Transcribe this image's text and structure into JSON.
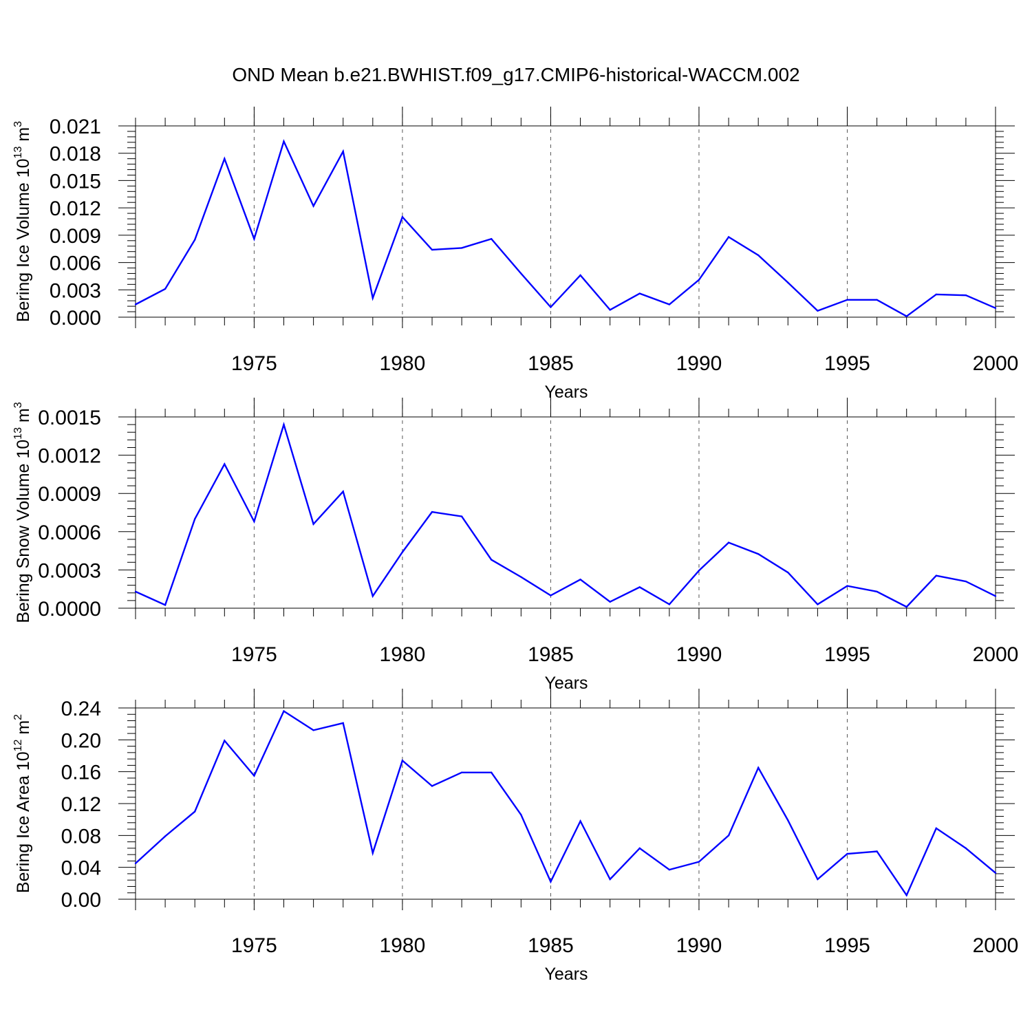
{
  "title": "OND Mean b.e21.BWHIST.f09_g17.CMIP6-historical-WACCM.002",
  "colors": {
    "line": "#0000ff",
    "axis": "#000000",
    "grid": "#555555",
    "background": "#ffffff"
  },
  "chart_data": [
    {
      "type": "line",
      "xlabel": "Years",
      "ylabel": {
        "text": "Bering Ice Volume 10",
        "sup": "13",
        "unit": " m",
        "unit_sup": "3"
      },
      "xlim": [
        1971,
        2000
      ],
      "ylim": [
        0,
        0.021
      ],
      "xticks": [
        1975,
        1980,
        1985,
        1990,
        1995,
        2000
      ],
      "xtick_labels": [
        "1975",
        "1980",
        "1985",
        "1990",
        "1995",
        "2000"
      ],
      "yticks": [
        0,
        0.003,
        0.006,
        0.009,
        0.012,
        0.015,
        0.018,
        0.021
      ],
      "ytick_labels": [
        "0.000",
        "0.003",
        "0.006",
        "0.009",
        "0.012",
        "0.015",
        "0.018",
        "0.021"
      ],
      "grid": "dashed vertical at major x ticks",
      "x": [
        1971,
        1972,
        1973,
        1974,
        1975,
        1976,
        1977,
        1978,
        1979,
        1980,
        1981,
        1982,
        1983,
        1984,
        1985,
        1986,
        1987,
        1988,
        1989,
        1990,
        1991,
        1992,
        1993,
        1994,
        1995,
        1996,
        1997,
        1998,
        1999,
        2000
      ],
      "series": [
        {
          "values": [
            0.0014,
            0.0031,
            0.0085,
            0.0174,
            0.0086,
            0.0193,
            0.0122,
            0.0182,
            0.0021,
            0.011,
            0.0074,
            0.0076,
            0.0086,
            0.0048,
            0.0011,
            0.0046,
            0.0008,
            0.0026,
            0.0014,
            0.0041,
            0.0088,
            0.0068,
            0.0038,
            0.0007,
            0.0019,
            0.0019,
            0.0001,
            0.0025,
            0.0024,
            0.001
          ]
        }
      ]
    },
    {
      "type": "line",
      "xlabel": "Years",
      "ylabel": {
        "text": "Bering Snow Volume 10",
        "sup": "13",
        "unit": " m",
        "unit_sup": "3"
      },
      "xlim": [
        1971,
        2000
      ],
      "ylim": [
        0,
        0.0015
      ],
      "xticks": [
        1975,
        1980,
        1985,
        1990,
        1995,
        2000
      ],
      "xtick_labels": [
        "1975",
        "1980",
        "1985",
        "1990",
        "1995",
        "2000"
      ],
      "yticks": [
        0,
        0.0003,
        0.0006,
        0.0009,
        0.0012,
        0.0015
      ],
      "ytick_labels": [
        "0.0000",
        "0.0003",
        "0.0006",
        "0.0009",
        "0.0012",
        "0.0015"
      ],
      "grid": "dashed vertical at major x ticks",
      "x": [
        1971,
        1972,
        1973,
        1974,
        1975,
        1976,
        1977,
        1978,
        1979,
        1980,
        1981,
        1982,
        1983,
        1984,
        1985,
        1986,
        1987,
        1988,
        1989,
        1990,
        1991,
        1992,
        1993,
        1994,
        1995,
        1996,
        1997,
        1998,
        1999,
        2000
      ],
      "series": [
        {
          "values": [
            0.00013,
            2.5e-05,
            0.0007,
            0.00113,
            0.00068,
            0.00144,
            0.00066,
            0.000915,
            9.5e-05,
            0.00044,
            0.000755,
            0.00072,
            0.00038,
            0.000245,
            0.0001,
            0.000225,
            5e-05,
            0.000165,
            3e-05,
            0.000295,
            0.000515,
            0.000425,
            0.00028,
            3e-05,
            0.000175,
            0.00013,
            1e-05,
            0.000255,
            0.00021,
            9.5e-05
          ]
        }
      ]
    },
    {
      "type": "line",
      "xlabel": "Years",
      "ylabel": {
        "text": "Bering Ice Area 10",
        "sup": "12",
        "unit": " m",
        "unit_sup": "2"
      },
      "xlim": [
        1971,
        2000
      ],
      "ylim": [
        0,
        0.24
      ],
      "xticks": [
        1975,
        1980,
        1985,
        1990,
        1995,
        2000
      ],
      "xtick_labels": [
        "1975",
        "1980",
        "1985",
        "1990",
        "1995",
        "2000"
      ],
      "yticks": [
        0,
        0.04,
        0.08,
        0.12,
        0.16,
        0.2,
        0.24
      ],
      "ytick_labels": [
        "0.00",
        "0.04",
        "0.08",
        "0.12",
        "0.16",
        "0.20",
        "0.24"
      ],
      "grid": "dashed vertical at major x ticks",
      "x": [
        1971,
        1972,
        1973,
        1974,
        1975,
        1976,
        1977,
        1978,
        1979,
        1980,
        1981,
        1982,
        1983,
        1984,
        1985,
        1986,
        1987,
        1988,
        1989,
        1990,
        1991,
        1992,
        1993,
        1994,
        1995,
        1996,
        1997,
        1998,
        1999,
        2000
      ],
      "series": [
        {
          "values": [
            0.045,
            0.079,
            0.11,
            0.199,
            0.155,
            0.236,
            0.212,
            0.221,
            0.058,
            0.174,
            0.142,
            0.159,
            0.159,
            0.106,
            0.022,
            0.098,
            0.025,
            0.064,
            0.037,
            0.047,
            0.08,
            0.165,
            0.099,
            0.025,
            0.057,
            0.06,
            0.005,
            0.089,
            0.064,
            0.033
          ]
        }
      ]
    }
  ]
}
